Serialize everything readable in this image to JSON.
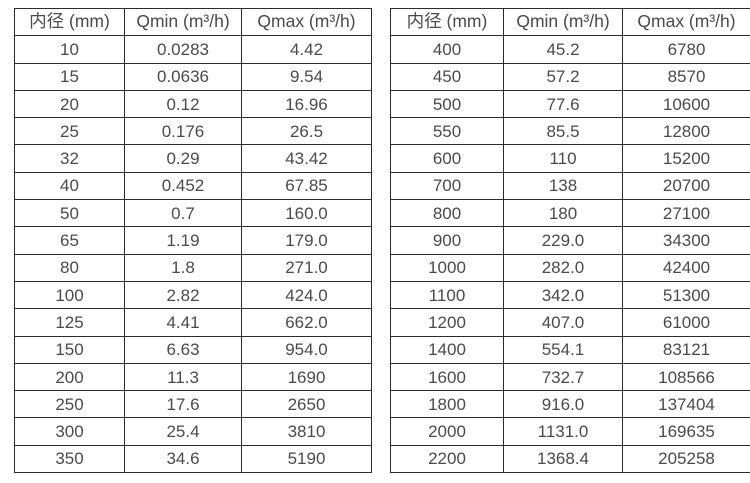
{
  "colors": {
    "border": "#2b2b2b",
    "text": "#4a4a4a",
    "background": "#ffffff"
  },
  "column_keys": [
    "diameter",
    "qmin",
    "qmax"
  ],
  "tables": [
    {
      "title": "flow-rate-table-small-diameters",
      "headers": [
        "内径 (mm)",
        "Qmin (m³/h)",
        "Qmax (m³/h)"
      ],
      "rows": [
        [
          "10",
          "0.0283",
          "4.42"
        ],
        [
          "15",
          "0.0636",
          "9.54"
        ],
        [
          "20",
          "0.12",
          "16.96"
        ],
        [
          "25",
          "0.176",
          "26.5"
        ],
        [
          "32",
          "0.29",
          "43.42"
        ],
        [
          "40",
          "0.452",
          "67.85"
        ],
        [
          "50",
          "0.7",
          "160.0"
        ],
        [
          "65",
          "1.19",
          "179.0"
        ],
        [
          "80",
          "1.8",
          "271.0"
        ],
        [
          "100",
          "2.82",
          "424.0"
        ],
        [
          "125",
          "4.41",
          "662.0"
        ],
        [
          "150",
          "6.63",
          "954.0"
        ],
        [
          "200",
          "11.3",
          "1690"
        ],
        [
          "250",
          "17.6",
          "2650"
        ],
        [
          "300",
          "25.4",
          "3810"
        ],
        [
          "350",
          "34.6",
          "5190"
        ]
      ]
    },
    {
      "title": "flow-rate-table-large-diameters",
      "headers": [
        "内径 (mm)",
        "Qmin (m³/h)",
        "Qmax (m³/h)"
      ],
      "rows": [
        [
          "400",
          "45.2",
          "6780"
        ],
        [
          "450",
          "57.2",
          "8570"
        ],
        [
          "500",
          "77.6",
          "10600"
        ],
        [
          "550",
          "85.5",
          "12800"
        ],
        [
          "600",
          "110",
          "15200"
        ],
        [
          "700",
          "138",
          "20700"
        ],
        [
          "800",
          "180",
          "27100"
        ],
        [
          "900",
          "229.0",
          "34300"
        ],
        [
          "1000",
          "282.0",
          "42400"
        ],
        [
          "1100",
          "342.0",
          "51300"
        ],
        [
          "1200",
          "407.0",
          "61000"
        ],
        [
          "1400",
          "554.1",
          "83121"
        ],
        [
          "1600",
          "732.7",
          "108566"
        ],
        [
          "1800",
          "916.0",
          "137404"
        ],
        [
          "2000",
          "1131.0",
          "169635"
        ],
        [
          "2200",
          "1368.4",
          "205258"
        ]
      ]
    }
  ]
}
